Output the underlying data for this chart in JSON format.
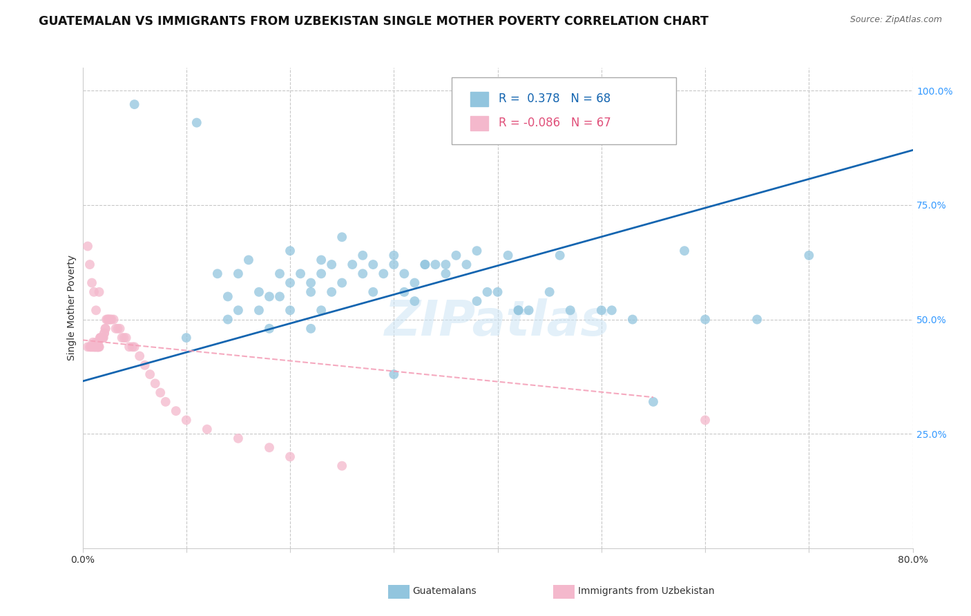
{
  "title": "GUATEMALAN VS IMMIGRANTS FROM UZBEKISTAN SINGLE MOTHER POVERTY CORRELATION CHART",
  "source": "Source: ZipAtlas.com",
  "ylabel": "Single Mother Poverty",
  "xlim": [
    0.0,
    0.8
  ],
  "ylim": [
    0.0,
    1.05
  ],
  "legend1_r": "0.378",
  "legend1_n": "68",
  "legend2_r": "-0.086",
  "legend2_n": "67",
  "blue_color": "#92c5de",
  "pink_color": "#f4b8cc",
  "line_blue": "#1465b0",
  "line_pink_color": "#f4a0b8",
  "watermark": "ZIPatlas",
  "legend_label1": "Guatemalans",
  "legend_label2": "Immigrants from Uzbekistan",
  "blue_x": [
    0.05,
    0.11,
    0.13,
    0.14,
    0.14,
    0.15,
    0.15,
    0.16,
    0.17,
    0.17,
    0.18,
    0.19,
    0.19,
    0.2,
    0.2,
    0.21,
    0.22,
    0.22,
    0.23,
    0.23,
    0.24,
    0.24,
    0.25,
    0.26,
    0.27,
    0.27,
    0.28,
    0.28,
    0.29,
    0.3,
    0.3,
    0.31,
    0.31,
    0.32,
    0.32,
    0.33,
    0.34,
    0.35,
    0.35,
    0.36,
    0.37,
    0.38,
    0.39,
    0.4,
    0.41,
    0.42,
    0.43,
    0.45,
    0.46,
    0.47,
    0.5,
    0.51,
    0.53,
    0.55,
    0.58,
    0.6,
    0.65,
    0.7,
    0.2,
    0.23,
    0.25,
    0.33,
    0.38,
    0.42,
    0.3,
    0.22,
    0.18,
    0.1
  ],
  "blue_y": [
    0.97,
    0.93,
    0.6,
    0.5,
    0.55,
    0.6,
    0.52,
    0.63,
    0.56,
    0.52,
    0.55,
    0.55,
    0.6,
    0.52,
    0.58,
    0.6,
    0.56,
    0.58,
    0.52,
    0.6,
    0.56,
    0.62,
    0.58,
    0.62,
    0.6,
    0.64,
    0.56,
    0.62,
    0.6,
    0.64,
    0.62,
    0.6,
    0.56,
    0.54,
    0.58,
    0.62,
    0.62,
    0.6,
    0.62,
    0.64,
    0.62,
    0.54,
    0.56,
    0.56,
    0.64,
    0.52,
    0.52,
    0.56,
    0.64,
    0.52,
    0.52,
    0.52,
    0.5,
    0.32,
    0.65,
    0.5,
    0.5,
    0.64,
    0.65,
    0.63,
    0.68,
    0.62,
    0.65,
    0.52,
    0.38,
    0.48,
    0.48,
    0.46
  ],
  "pink_x": [
    0.005,
    0.007,
    0.008,
    0.009,
    0.01,
    0.01,
    0.011,
    0.012,
    0.012,
    0.013,
    0.013,
    0.014,
    0.014,
    0.015,
    0.015,
    0.015,
    0.016,
    0.016,
    0.017,
    0.017,
    0.018,
    0.018,
    0.019,
    0.019,
    0.02,
    0.02,
    0.021,
    0.021,
    0.022,
    0.022,
    0.023,
    0.024,
    0.025,
    0.025,
    0.026,
    0.027,
    0.028,
    0.03,
    0.032,
    0.034,
    0.036,
    0.038,
    0.04,
    0.042,
    0.045,
    0.048,
    0.05,
    0.055,
    0.06,
    0.065,
    0.07,
    0.075,
    0.08,
    0.09,
    0.1,
    0.12,
    0.15,
    0.18,
    0.2,
    0.25,
    0.6,
    0.005,
    0.007,
    0.009,
    0.011,
    0.013,
    0.016
  ],
  "pink_y": [
    0.44,
    0.44,
    0.44,
    0.44,
    0.45,
    0.44,
    0.44,
    0.44,
    0.44,
    0.44,
    0.45,
    0.44,
    0.44,
    0.44,
    0.44,
    0.45,
    0.44,
    0.44,
    0.46,
    0.46,
    0.46,
    0.46,
    0.46,
    0.46,
    0.46,
    0.46,
    0.47,
    0.47,
    0.48,
    0.48,
    0.5,
    0.5,
    0.5,
    0.5,
    0.5,
    0.5,
    0.5,
    0.5,
    0.48,
    0.48,
    0.48,
    0.46,
    0.46,
    0.46,
    0.44,
    0.44,
    0.44,
    0.42,
    0.4,
    0.38,
    0.36,
    0.34,
    0.32,
    0.3,
    0.28,
    0.26,
    0.24,
    0.22,
    0.2,
    0.18,
    0.28,
    0.66,
    0.62,
    0.58,
    0.56,
    0.52,
    0.56
  ],
  "blue_trend_x": [
    0.0,
    0.8
  ],
  "blue_trend_y": [
    0.365,
    0.87
  ],
  "pink_trend_x": [
    0.0,
    0.55
  ],
  "pink_trend_y": [
    0.455,
    0.33
  ],
  "grid_color": "#c8c8c8",
  "bg_color": "#ffffff",
  "title_fontsize": 12.5,
  "axis_label_fontsize": 10,
  "tick_fontsize": 10
}
